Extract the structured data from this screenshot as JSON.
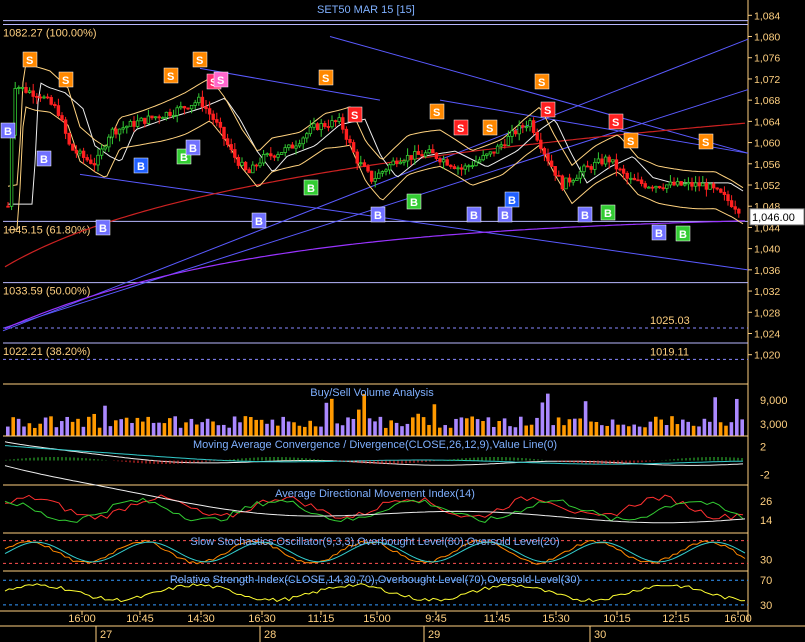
{
  "window": {
    "title": "SET50 MAR 15   [15]"
  },
  "chart_data": [
    {
      "type": "candlestick",
      "title": "SET50 MAR 15   [15]",
      "ylim": [
        1019,
        1085
      ],
      "y_ticks": [
        "1,084",
        "1,080",
        "1,076",
        "1,072",
        "1,068",
        "1,064",
        "1,060",
        "1,056",
        "1,052",
        "1,048",
        "1,044",
        "1,040",
        "1,036",
        "1,032",
        "1,028",
        "1,024",
        "1,020"
      ],
      "y_tick_values": [
        1084,
        1080,
        1076,
        1072,
        1068,
        1064,
        1060,
        1056,
        1052,
        1048,
        1044,
        1040,
        1036,
        1032,
        1028,
        1024,
        1020
      ],
      "last_price": "1,046.00",
      "last_value": 1046.0,
      "fib_levels": [
        {
          "label": "1082.27 (100.00%)",
          "value": 1082.27
        },
        {
          "label": "1045.15 (61.80%)",
          "value": 1045.15
        },
        {
          "label": "1033.59 (50.00%)",
          "value": 1033.59
        },
        {
          "label": "1022.21 (38.20%)",
          "value": 1022.21
        }
      ],
      "right_labels": [
        {
          "label": "1025.03",
          "value": 1025.03
        },
        {
          "label": "1019.11",
          "value": 1019.11
        }
      ],
      "colors": {
        "up": "#33cc33",
        "down": "#ff2020",
        "buy": "#7070ff",
        "sell": "#ff8800",
        "channel": "#5a5aff",
        "ma_red": "#cc2222",
        "ma_purple": "#9933ff",
        "envelope": "#ffd27f",
        "ma_white": "#eeeeee"
      },
      "signals": {
        "sell": [
          "S",
          "S",
          "S",
          "S",
          "S",
          "S",
          "S",
          "S",
          "S",
          "S",
          "S",
          "S",
          "S",
          "S",
          "S",
          "S",
          "S",
          "S",
          "S"
        ],
        "buy": [
          "B",
          "B",
          "B",
          "B",
          "B",
          "B",
          "B",
          "B",
          "B",
          "B",
          "B",
          "B",
          "B",
          "B",
          "B",
          "B",
          "B",
          "B",
          "B",
          "B",
          "B",
          "B",
          "B"
        ]
      }
    },
    {
      "type": "bar",
      "title": "Buy/Sell Volume Analysis",
      "y_ticks": [
        "9,000",
        "3,000"
      ],
      "y_tick_values": [
        9000,
        3000
      ],
      "ylim": [
        0,
        13000
      ]
    },
    {
      "type": "line",
      "title": "Moving Average Convergence / Divergence(CLOSE,26,12,9),Value Line(0)",
      "y_ticks": [
        "2",
        "-2"
      ],
      "y_tick_values": [
        2,
        -2
      ],
      "ylim": [
        -3.5,
        3.5
      ]
    },
    {
      "type": "line",
      "title": "Average Directional Movement Index(14)",
      "y_ticks": [
        "26",
        "14"
      ],
      "y_tick_values": [
        26,
        14
      ],
      "ylim": [
        6,
        36
      ]
    },
    {
      "type": "line",
      "title": "Slow Stochastics Oscillator(9,3,3),Overbought Level(80),Oversold Level(20)",
      "y_ticks": [
        "30"
      ],
      "y_tick_values": [
        30
      ],
      "ylim": [
        0,
        100
      ]
    },
    {
      "type": "line",
      "title": "Relative Strength Index(CLOSE,14,30,70),Overbought Level(70),Oversold Level(30)",
      "y_ticks": [
        "70",
        "30"
      ],
      "y_tick_values": [
        70,
        30
      ],
      "ylim": [
        20,
        85
      ]
    }
  ],
  "x_axis": {
    "time_labels": [
      "16:00",
      "10:45",
      "14:30",
      "16:30",
      "11:15",
      "15:00",
      "9:45",
      "11:45",
      "15:30",
      "10:15",
      "12:15",
      "16:00"
    ],
    "day_labels": [
      "27",
      "28",
      "29",
      "30"
    ]
  }
}
